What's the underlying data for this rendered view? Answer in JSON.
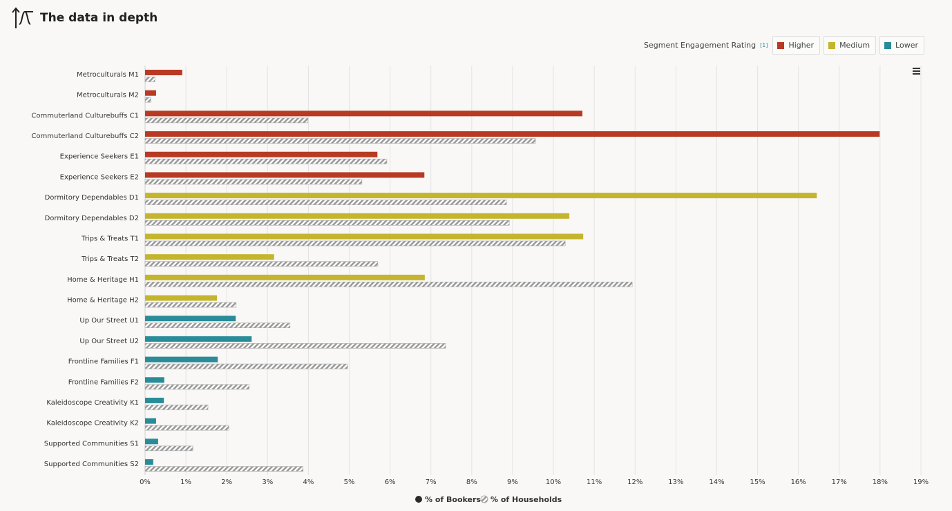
{
  "header": {
    "title": "The data in depth"
  },
  "chart_data": {
    "type": "bar",
    "orientation": "horizontal",
    "categories": [
      "Metroculturals M1",
      "Metroculturals M2",
      "Commuterland Culturebuffs C1",
      "Commuterland Culturebuffs C2",
      "Experience Seekers E1",
      "Experience Seekers E2",
      "Dormitory Dependables D1",
      "Dormitory Dependables D2",
      "Trips & Treats T1",
      "Trips & Treats T2",
      "Home & Heritage H1",
      "Home & Heritage H2",
      "Up Our Street U1",
      "Up Our Street U2",
      "Frontline Families F1",
      "Frontline Families F2",
      "Kaleidoscope Creativity K1",
      "Kaleidoscope Creativity K2",
      "Supported Communities S1",
      "Supported Communities S2"
    ],
    "series": [
      {
        "name": "% of Bookers",
        "color": "#2b2b2b",
        "colors": [
          "#b83a23",
          "#b83a23",
          "#b83a23",
          "#b83a23",
          "#b83a23",
          "#b83a23",
          "#c4b52e",
          "#c4b52e",
          "#c4b52e",
          "#c4b52e",
          "#c4b52e",
          "#c4b52e",
          "#2a8c98",
          "#2a8c98",
          "#2a8c98",
          "#2a8c98",
          "#2a8c98",
          "#2a8c98",
          "#2a8c98",
          "#2a8c98"
        ],
        "values": [
          0.91,
          0.27,
          10.71,
          17.99,
          5.69,
          6.84,
          16.45,
          10.39,
          10.73,
          3.16,
          6.85,
          1.76,
          2.22,
          2.61,
          1.78,
          0.47,
          0.46,
          0.27,
          0.32,
          0.2
        ]
      },
      {
        "name": "% of Households",
        "color": "#a9a9a9",
        "pattern": "hatch",
        "values": [
          0.24,
          0.14,
          3.99,
          9.56,
          5.92,
          5.31,
          8.85,
          8.92,
          10.29,
          5.7,
          11.93,
          2.23,
          3.55,
          7.36,
          4.96,
          2.55,
          1.54,
          2.05,
          1.17,
          3.87
        ]
      }
    ],
    "xlim": [
      0,
      19
    ],
    "xticks": [
      {
        "value": 0,
        "label": "0%"
      },
      {
        "value": 1,
        "label": "1%"
      },
      {
        "value": 2,
        "label": "2%"
      },
      {
        "value": 3,
        "label": "3%"
      },
      {
        "value": 4,
        "label": "4%"
      },
      {
        "value": 5,
        "label": "5%"
      },
      {
        "value": 6,
        "label": "6%"
      },
      {
        "value": 7,
        "label": "7%"
      },
      {
        "value": 8,
        "label": "8%"
      },
      {
        "value": 9,
        "label": "9%"
      },
      {
        "value": 10,
        "label": "10%"
      },
      {
        "value": 11,
        "label": "11%"
      },
      {
        "value": 12,
        "label": "12%"
      },
      {
        "value": 13,
        "label": "13%"
      },
      {
        "value": 14,
        "label": "14%"
      },
      {
        "value": 15,
        "label": "15%"
      },
      {
        "value": 16,
        "label": "16%"
      },
      {
        "value": 17,
        "label": "17%"
      },
      {
        "value": 18,
        "label": "18%"
      },
      {
        "value": 19,
        "label": "19%"
      }
    ],
    "grid": true,
    "segment_legend": {
      "title": "Segment Engagement Rating",
      "note": "[1]",
      "items": [
        {
          "name": "Higher",
          "color": "#b83a23"
        },
        {
          "name": "Medium",
          "color": "#c4b52e"
        },
        {
          "name": "Lower",
          "color": "#2a8c98"
        }
      ]
    }
  }
}
